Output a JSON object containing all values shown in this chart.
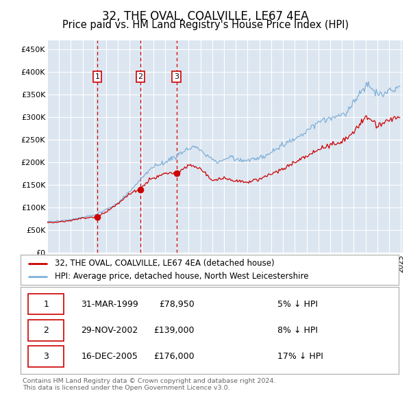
{
  "title": "32, THE OVAL, COALVILLE, LE67 4EA",
  "subtitle": "Price paid vs. HM Land Registry's House Price Index (HPI)",
  "title_fontsize": 12,
  "subtitle_fontsize": 10.5,
  "plot_bg_color": "#dce6f1",
  "legend_label_red": "32, THE OVAL, COALVILLE, LE67 4EA (detached house)",
  "legend_label_blue": "HPI: Average price, detached house, North West Leicestershire",
  "sale_dates": [
    "1999-03-31",
    "2002-11-29",
    "2005-12-16"
  ],
  "sale_prices": [
    78950,
    139000,
    176000
  ],
  "sale_labels": [
    "1",
    "2",
    "3"
  ],
  "table_rows": [
    [
      "1",
      "31-MAR-1999",
      "£78,950",
      "5% ↓ HPI"
    ],
    [
      "2",
      "29-NOV-2002",
      "£139,000",
      "8% ↓ HPI"
    ],
    [
      "3",
      "16-DEC-2005",
      "£176,000",
      "17% ↓ HPI"
    ]
  ],
  "footnote": "Contains HM Land Registry data © Crown copyright and database right 2024.\nThis data is licensed under the Open Government Licence v3.0.",
  "red_color": "#cc0000",
  "blue_color": "#7fb0d8",
  "dashed_color": "#cc0000",
  "ylim": [
    0,
    470000
  ],
  "yticks": [
    0,
    50000,
    100000,
    150000,
    200000,
    250000,
    300000,
    350000,
    400000,
    450000
  ],
  "x_start_year": 1995,
  "x_end_year": 2025
}
